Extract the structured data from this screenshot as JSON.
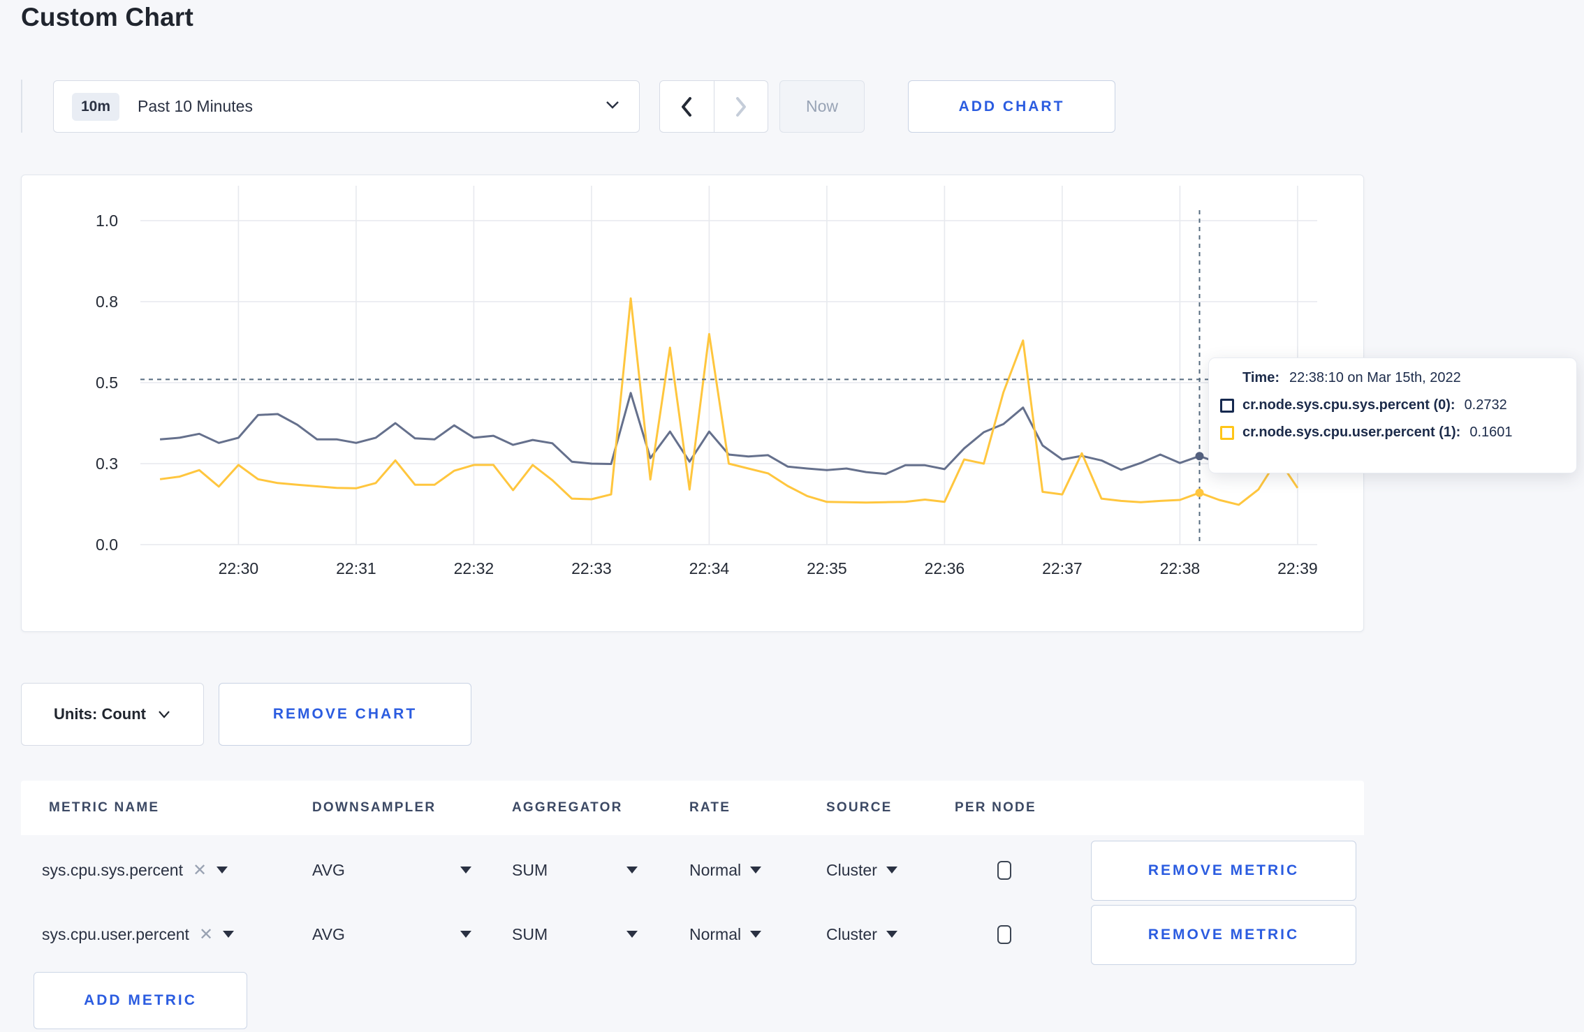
{
  "page": {
    "title": "Custom Chart"
  },
  "toolbar": {
    "time_badge": "10m",
    "time_label": "Past 10 Minutes",
    "now_label": "Now",
    "add_chart_label": "ADD CHART"
  },
  "chart": {
    "tooltip": {
      "time_label": "Time:",
      "time_value": "22:38:10 on Mar 15th, 2022",
      "series": [
        {
          "name": "cr.node.sys.cpu.sys.percent (0):",
          "value": "0.2732",
          "color": "#16294f"
        },
        {
          "name": "cr.node.sys.cpu.user.percent (1):",
          "value": "0.1601",
          "color": "#ffc518"
        }
      ]
    }
  },
  "chart_data": {
    "type": "line",
    "title": "",
    "xlabel": "",
    "ylabel": "",
    "ylim": [
      0,
      1
    ],
    "grid": true,
    "x_domain": [
      "22:29:10",
      "22:39:10"
    ],
    "x_start": "22:29:20",
    "x_step_seconds": 10,
    "x_ticks": [
      "22:30",
      "22:31",
      "22:32",
      "22:33",
      "22:34",
      "22:35",
      "22:36",
      "22:37",
      "22:38",
      "22:39"
    ],
    "y_ticks": [
      0,
      0.25,
      0.5,
      0.75,
      1.0
    ],
    "y_tick_labels": [
      "0.0",
      "0.3",
      "0.5",
      "0.8",
      "1.0"
    ],
    "series": [
      {
        "name": "cr.node.sys.cpu.sys.percent",
        "color": "#54617f",
        "values": [
          0.325,
          0.33,
          0.342,
          0.314,
          0.33,
          0.4,
          0.403,
          0.37,
          0.325,
          0.325,
          0.314,
          0.33,
          0.375,
          0.328,
          0.325,
          0.368,
          0.33,
          0.336,
          0.308,
          0.323,
          0.313,
          0.256,
          0.25,
          0.249,
          0.468,
          0.267,
          0.349,
          0.256,
          0.349,
          0.278,
          0.272,
          0.276,
          0.241,
          0.235,
          0.23,
          0.235,
          0.224,
          0.218,
          0.245,
          0.245,
          0.233,
          0.297,
          0.347,
          0.372,
          0.423,
          0.306,
          0.263,
          0.274,
          0.26,
          0.231,
          0.252,
          0.278,
          0.252,
          0.2732,
          0.252,
          0.27,
          0.28,
          0.27,
          0.27
        ]
      },
      {
        "name": "cr.node.sys.cpu.user.percent",
        "color": "#ffc63e",
        "values": [
          0.202,
          0.21,
          0.23,
          0.179,
          0.246,
          0.202,
          0.19,
          0.185,
          0.18,
          0.175,
          0.174,
          0.19,
          0.26,
          0.185,
          0.185,
          0.228,
          0.246,
          0.246,
          0.168,
          0.246,
          0.199,
          0.142,
          0.14,
          0.155,
          0.76,
          0.201,
          0.608,
          0.17,
          0.65,
          0.25,
          0.235,
          0.22,
          0.181,
          0.15,
          0.132,
          0.131,
          0.13,
          0.131,
          0.132,
          0.139,
          0.132,
          0.263,
          0.25,
          0.47,
          0.63,
          0.163,
          0.155,
          0.282,
          0.142,
          0.135,
          0.131,
          0.135,
          0.138,
          0.1601,
          0.138,
          0.123,
          0.17,
          0.265,
          0.175
        ]
      }
    ],
    "crosshair": {
      "time": "22:38:10",
      "x_index": 53,
      "hline_value": 0.51
    }
  },
  "controls": {
    "units_label": "Units: Count",
    "remove_chart_label": "REMOVE CHART",
    "add_metric_label": "ADD METRIC"
  },
  "table": {
    "headers": [
      "METRIC NAME",
      "DOWNSAMPLER",
      "AGGREGATOR",
      "RATE",
      "SOURCE",
      "PER NODE"
    ],
    "rows": [
      {
        "metric": "sys.cpu.sys.percent",
        "close": "✕",
        "downsampler": "AVG",
        "aggregator": "SUM",
        "rate": "Normal",
        "source": "Cluster",
        "per_node_checked": false,
        "remove_label": "REMOVE METRIC"
      },
      {
        "metric": "sys.cpu.user.percent",
        "close": "✕",
        "downsampler": "AVG",
        "aggregator": "SUM",
        "rate": "Normal",
        "source": "Cluster",
        "per_node_checked": false,
        "remove_label": "REMOVE METRIC"
      }
    ]
  }
}
